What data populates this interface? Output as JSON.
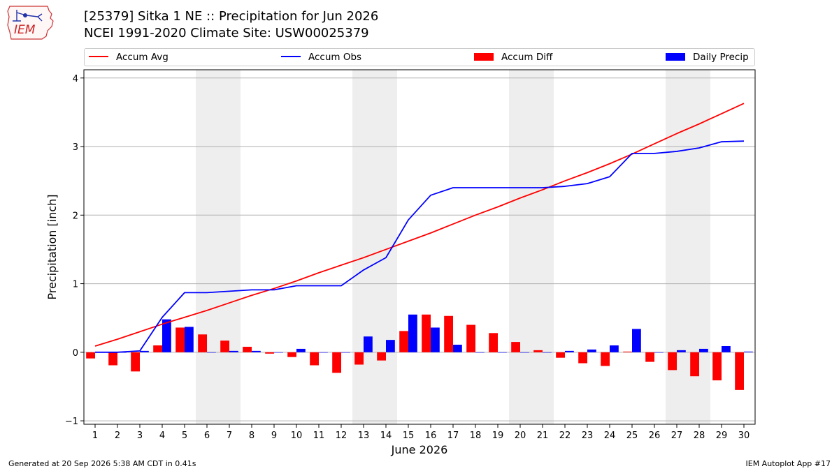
{
  "logo": {
    "text": "IEM"
  },
  "title": {
    "line1": "[25379] Sitka 1 NE :: Precipitation for Jun 2026",
    "line2": "NCEI 1991-2020 Climate Site: USW00025379"
  },
  "footer": {
    "left": "Generated at 20 Sep 2026 5:38 AM CDT in 0.41s",
    "right": "IEM Autoplot App #17"
  },
  "colors": {
    "avg": "#ff0000",
    "obs": "#0000ff",
    "diff": "#ff0000",
    "daily": "#0000ff",
    "weekend_shade": "#eeeeee",
    "grid": "#b0b0b0"
  },
  "chart_data": {
    "type": "bar",
    "xlabel": "June 2026",
    "ylabel": "Precipitation [inch]",
    "xlim": [
      0.5,
      30.5
    ],
    "ylim": [
      -1.05,
      4.12
    ],
    "yticks": [
      -1,
      0,
      1,
      2,
      3,
      4
    ],
    "grid": "horizontal",
    "legend_placement": "top",
    "weekend_spans": [
      [
        5.5,
        7.5
      ],
      [
        12.5,
        14.5
      ],
      [
        19.5,
        21.5
      ],
      [
        26.5,
        28.5
      ]
    ],
    "x": [
      1,
      2,
      3,
      4,
      5,
      6,
      7,
      8,
      9,
      10,
      11,
      12,
      13,
      14,
      15,
      16,
      17,
      18,
      19,
      20,
      21,
      22,
      23,
      24,
      25,
      26,
      27,
      28,
      29,
      30
    ],
    "series": [
      {
        "name": "Accum Avg",
        "kind": "line",
        "values": [
          0.09,
          0.19,
          0.3,
          0.41,
          0.51,
          0.61,
          0.72,
          0.83,
          0.93,
          1.04,
          1.16,
          1.27,
          1.38,
          1.5,
          1.62,
          1.74,
          1.87,
          2.0,
          2.12,
          2.25,
          2.37,
          2.5,
          2.62,
          2.75,
          2.89,
          3.04,
          3.19,
          3.33,
          3.48,
          3.63
        ]
      },
      {
        "name": "Accum Obs",
        "kind": "line",
        "values": [
          0.0,
          0.0,
          0.02,
          0.51,
          0.87,
          0.87,
          0.89,
          0.91,
          0.91,
          0.97,
          0.97,
          0.97,
          1.2,
          1.38,
          1.93,
          2.29,
          2.4,
          2.4,
          2.4,
          2.4,
          2.4,
          2.42,
          2.46,
          2.56,
          2.9,
          2.9,
          2.93,
          2.98,
          3.07,
          3.08
        ]
      },
      {
        "name": "Accum Diff",
        "kind": "bar",
        "values": [
          -0.09,
          -0.19,
          -0.28,
          0.1,
          0.36,
          0.26,
          0.17,
          0.08,
          -0.02,
          -0.07,
          -0.19,
          -0.3,
          -0.18,
          -0.12,
          0.31,
          0.55,
          0.53,
          0.4,
          0.28,
          0.15,
          0.03,
          -0.08,
          -0.16,
          -0.2,
          0.01,
          -0.14,
          -0.26,
          -0.35,
          -0.41,
          -0.55
        ]
      },
      {
        "name": "Daily Precip",
        "kind": "bar",
        "values": [
          0.0,
          0.0,
          0.02,
          0.48,
          0.37,
          0.0,
          0.02,
          0.02,
          0.0,
          0.05,
          0.0,
          0.0,
          0.23,
          0.18,
          0.55,
          0.36,
          0.11,
          0.0,
          0.0,
          0.0,
          0.0,
          0.02,
          0.04,
          0.1,
          0.34,
          0.0,
          0.03,
          0.05,
          0.09,
          0.01
        ]
      }
    ]
  }
}
